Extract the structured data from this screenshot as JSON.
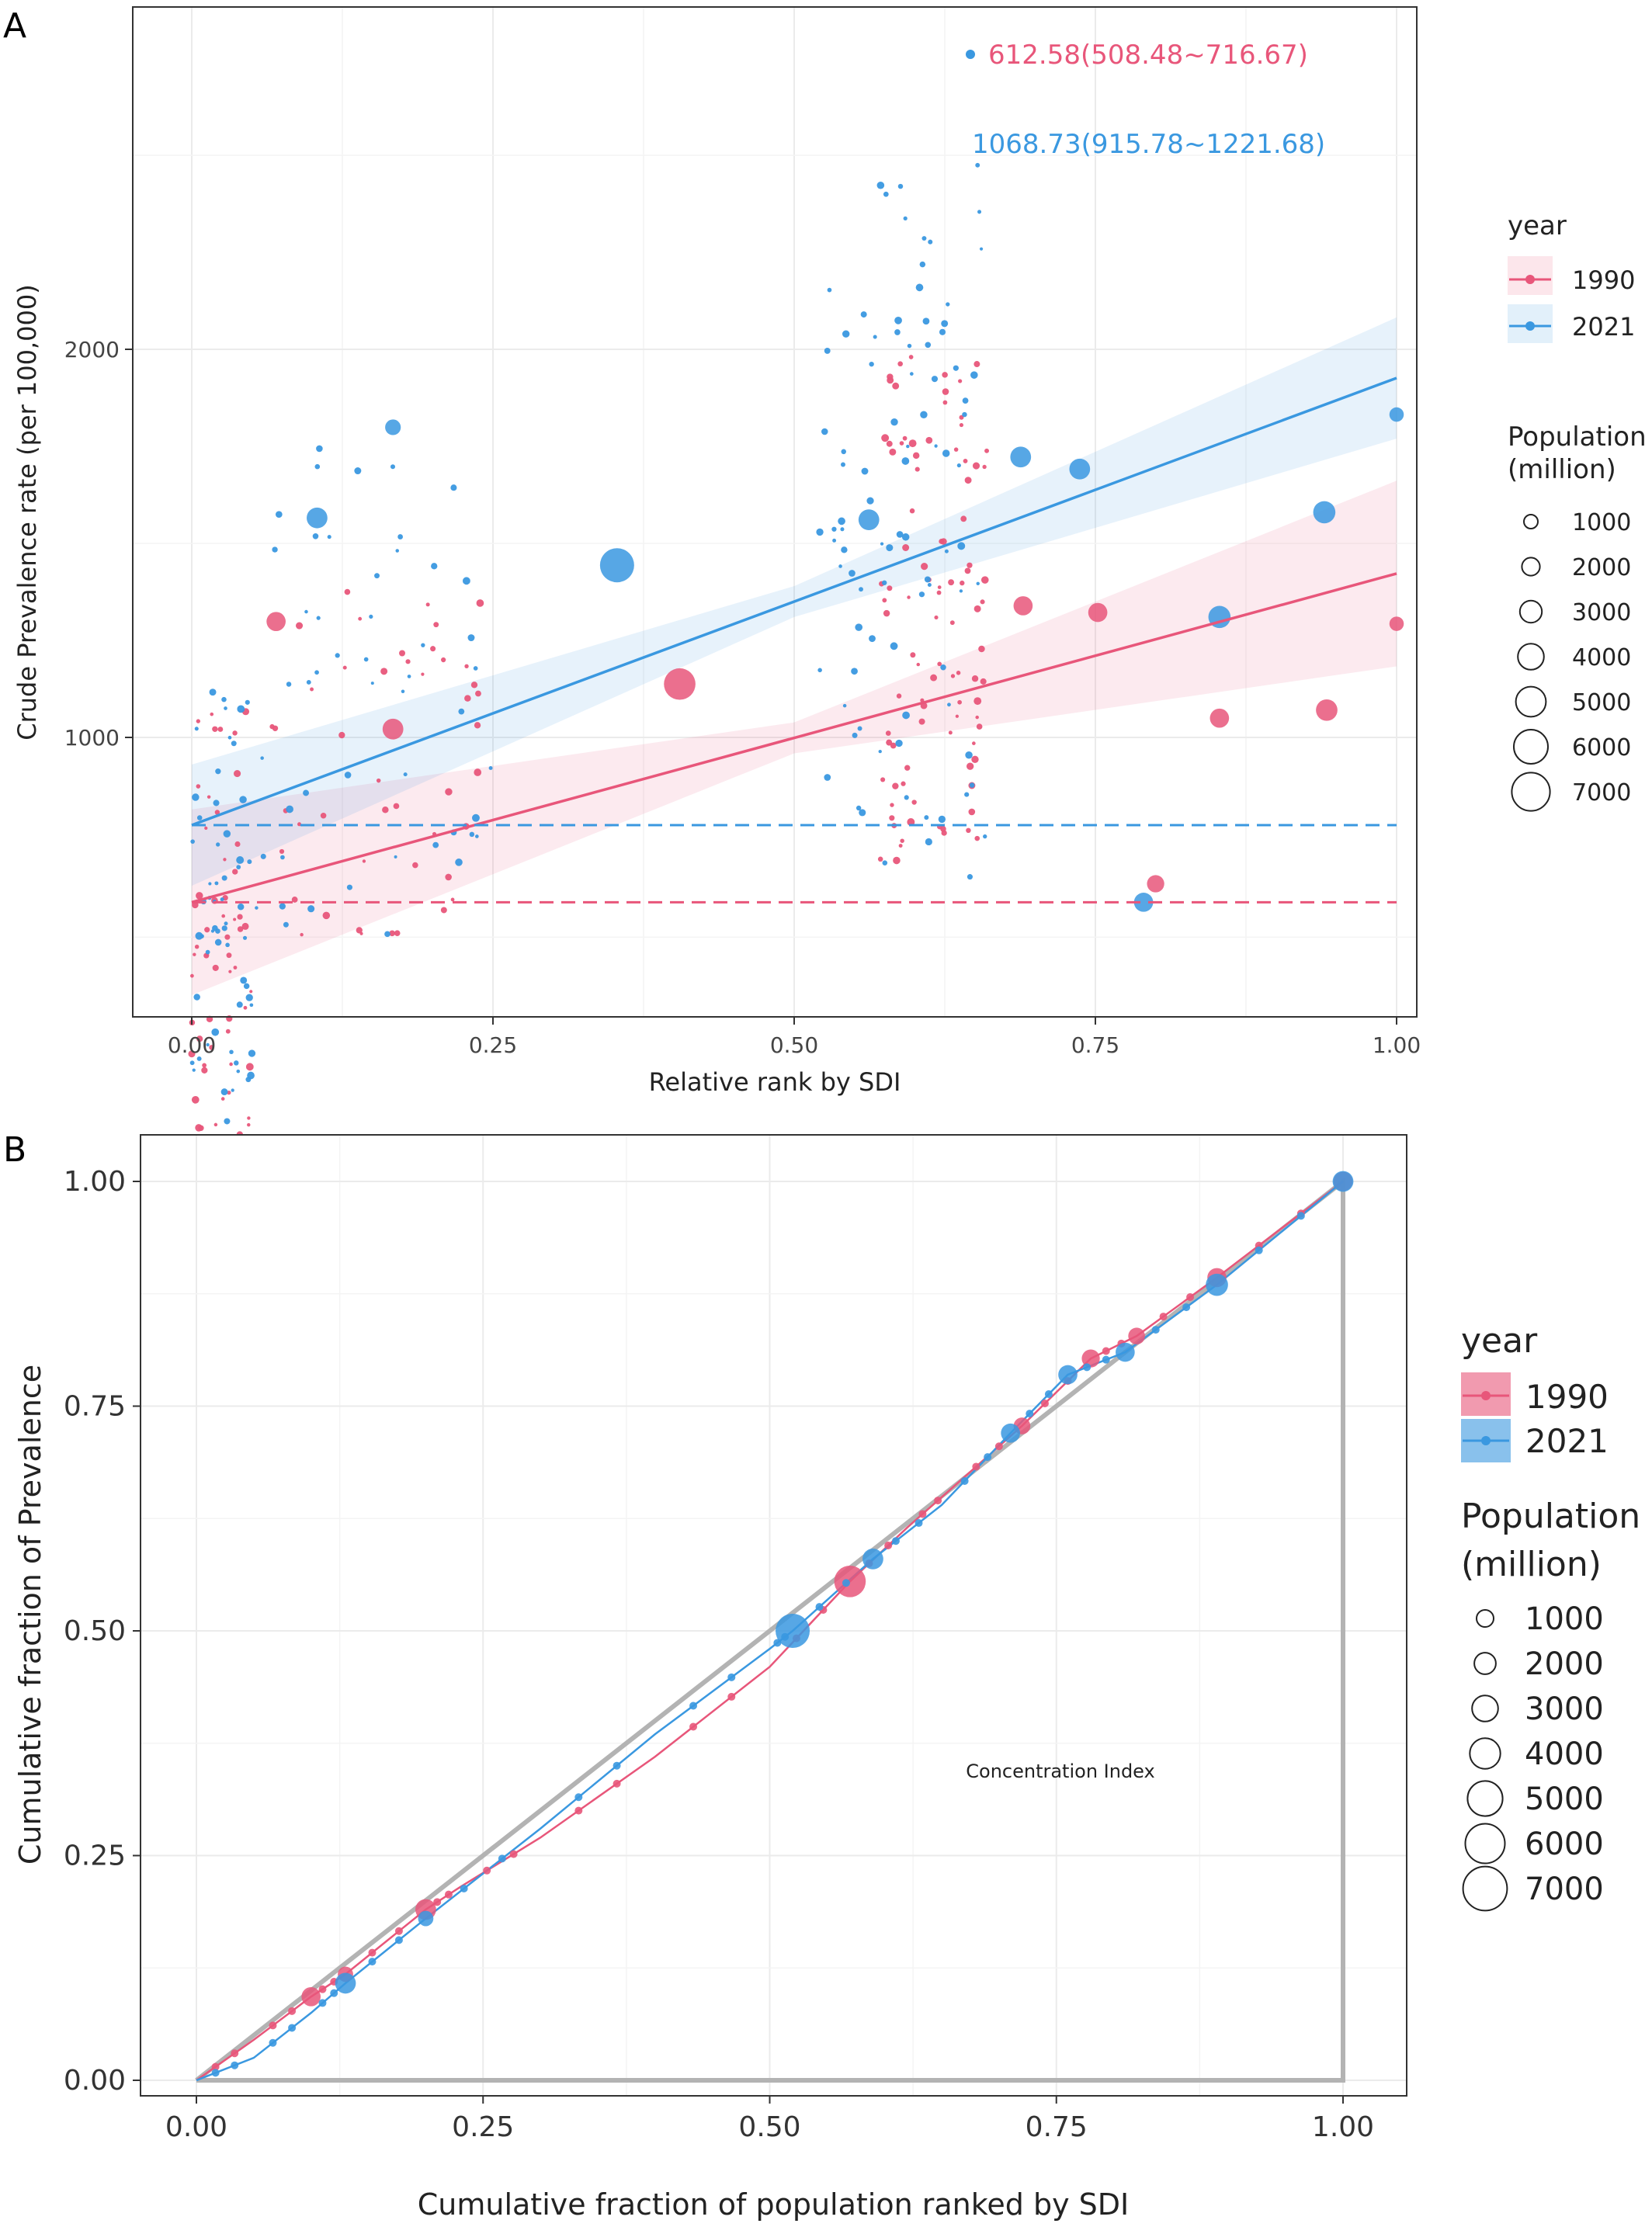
{
  "colors": {
    "y1990": "#e8567a",
    "y2021": "#3a98e0",
    "grid": "#ebebeb",
    "diag": "#b3b3b3"
  },
  "panelA": {
    "tag": "A",
    "xlabel": "Relative rank by SDI",
    "ylabel": "Crude Prevalence rate (per 100,000)",
    "annotation_1990": "612.58(508.48~716.67)",
    "annotation_2021": "1068.73(915.78~1221.68)"
  },
  "panelB": {
    "tag": "B",
    "xlabel": "Cumulative fraction of population ranked by SDI",
    "ylabel": "Cumulative fraction of Prevalence",
    "center_text": "Concentration Index"
  },
  "legend": {
    "year_title": "year",
    "years": [
      "1990",
      "2021"
    ],
    "population_title_line1": "Population",
    "population_title_line2": "(million)",
    "population_levels": [
      "1000",
      "2000",
      "3000",
      "4000",
      "5000",
      "6000",
      "7000"
    ]
  },
  "chart_data": [
    {
      "type": "scatter",
      "panel": "A",
      "log_y": true,
      "xlim": [
        0,
        1
      ],
      "ylim": [
        430,
        3000
      ],
      "x_ticks": [
        "0.00",
        "0.25",
        "0.50",
        "0.75",
        "1.00"
      ],
      "y_ticks": [
        "1000",
        "2000"
      ],
      "grid": true,
      "legend_position": "right",
      "series": [
        {
          "name": "1990",
          "color": "#e8567a",
          "fit_line": {
            "x": [
              0,
              1
            ],
            "y": [
              745,
              1340
            ]
          },
          "reference_y": 745,
          "big_points": [
            {
              "x": 0.07,
              "y": 1230,
              "pop": 300
            },
            {
              "x": 0.167,
              "y": 1015,
              "pop": 380
            },
            {
              "x": 0.405,
              "y": 1100,
              "pop": 1150
            },
            {
              "x": 0.69,
              "y": 1265,
              "pop": 300
            },
            {
              "x": 0.752,
              "y": 1250,
              "pop": 300
            },
            {
              "x": 0.8,
              "y": 770,
              "pop": 220
            },
            {
              "x": 0.853,
              "y": 1035,
              "pop": 300
            },
            {
              "x": 0.942,
              "y": 1050,
              "pop": 420
            },
            {
              "x": 1.0,
              "y": 1225,
              "pop": 120
            }
          ],
          "small_points_count": 200
        },
        {
          "name": "2021",
          "color": "#3a98e0",
          "fit_line": {
            "x": [
              0,
              1
            ],
            "y": [
              855,
              1900
            ]
          },
          "reference_y": 855,
          "big_points": [
            {
              "x": 0.104,
              "y": 1480,
              "pop": 380
            },
            {
              "x": 0.353,
              "y": 1360,
              "pop": 1400
            },
            {
              "x": 0.167,
              "y": 1740,
              "pop": 160
            },
            {
              "x": 0.562,
              "y": 1475,
              "pop": 380
            },
            {
              "x": 0.688,
              "y": 1650,
              "pop": 380
            },
            {
              "x": 0.737,
              "y": 1615,
              "pop": 380
            },
            {
              "x": 0.79,
              "y": 745,
              "pop": 300
            },
            {
              "x": 0.853,
              "y": 1240,
              "pop": 460
            },
            {
              "x": 0.94,
              "y": 1495,
              "pop": 460
            },
            {
              "x": 1.0,
              "y": 1780,
              "pop": 120
            }
          ],
          "small_points_count": 200
        }
      ]
    },
    {
      "type": "line",
      "panel": "B",
      "xlim": [
        0,
        1
      ],
      "ylim": [
        0,
        1
      ],
      "x_ticks": [
        "0.00",
        "0.25",
        "0.50",
        "0.75",
        "1.00"
      ],
      "y_ticks": [
        "0.00",
        "0.25",
        "0.50",
        "0.75",
        "1.00"
      ],
      "grid": true,
      "legend_position": "right",
      "series": [
        {
          "name": "1990",
          "color": "#e8567a",
          "curve": {
            "x": [
              0,
              0.05,
              0.1,
              0.13,
              0.2,
              0.23,
              0.3,
              0.4,
              0.5,
              0.57,
              0.62,
              0.66,
              0.72,
              0.78,
              0.82,
              0.89,
              1.0
            ],
            "y": [
              0,
              0.045,
              0.093,
              0.118,
              0.19,
              0.215,
              0.27,
              0.36,
              0.46,
              0.555,
              0.615,
              0.66,
              0.728,
              0.803,
              0.828,
              0.893,
              1.0
            ]
          },
          "points": [
            {
              "x": 0.1,
              "y": 0.093,
              "pop": 300
            },
            {
              "x": 0.13,
              "y": 0.118,
              "pop": 150
            },
            {
              "x": 0.2,
              "y": 0.19,
              "pop": 380
            },
            {
              "x": 0.57,
              "y": 0.555,
              "pop": 1150
            },
            {
              "x": 0.72,
              "y": 0.728,
              "pop": 200
            },
            {
              "x": 0.78,
              "y": 0.803,
              "pop": 250
            },
            {
              "x": 0.82,
              "y": 0.828,
              "pop": 200
            },
            {
              "x": 0.89,
              "y": 0.893,
              "pop": 300
            },
            {
              "x": 1.0,
              "y": 1.0,
              "pop": 300
            }
          ]
        },
        {
          "name": "2021",
          "color": "#3a98e0",
          "curve": {
            "x": [
              0,
              0.05,
              0.1,
              0.13,
              0.2,
              0.3,
              0.4,
              0.5,
              0.52,
              0.59,
              0.65,
              0.71,
              0.76,
              0.81,
              0.89,
              1.0
            ],
            "y": [
              0,
              0.025,
              0.075,
              0.108,
              0.18,
              0.28,
              0.385,
              0.48,
              0.5,
              0.58,
              0.64,
              0.72,
              0.785,
              0.81,
              0.885,
              1.0
            ]
          },
          "points": [
            {
              "x": 0.13,
              "y": 0.108,
              "pop": 380
            },
            {
              "x": 0.2,
              "y": 0.18,
              "pop": 150
            },
            {
              "x": 0.52,
              "y": 0.5,
              "pop": 1400
            },
            {
              "x": 0.59,
              "y": 0.58,
              "pop": 380
            },
            {
              "x": 0.71,
              "y": 0.72,
              "pop": 300
            },
            {
              "x": 0.76,
              "y": 0.785,
              "pop": 300
            },
            {
              "x": 0.81,
              "y": 0.81,
              "pop": 300
            },
            {
              "x": 0.89,
              "y": 0.885,
              "pop": 460
            },
            {
              "x": 1.0,
              "y": 1.0,
              "pop": 380
            }
          ]
        }
      ]
    }
  ]
}
